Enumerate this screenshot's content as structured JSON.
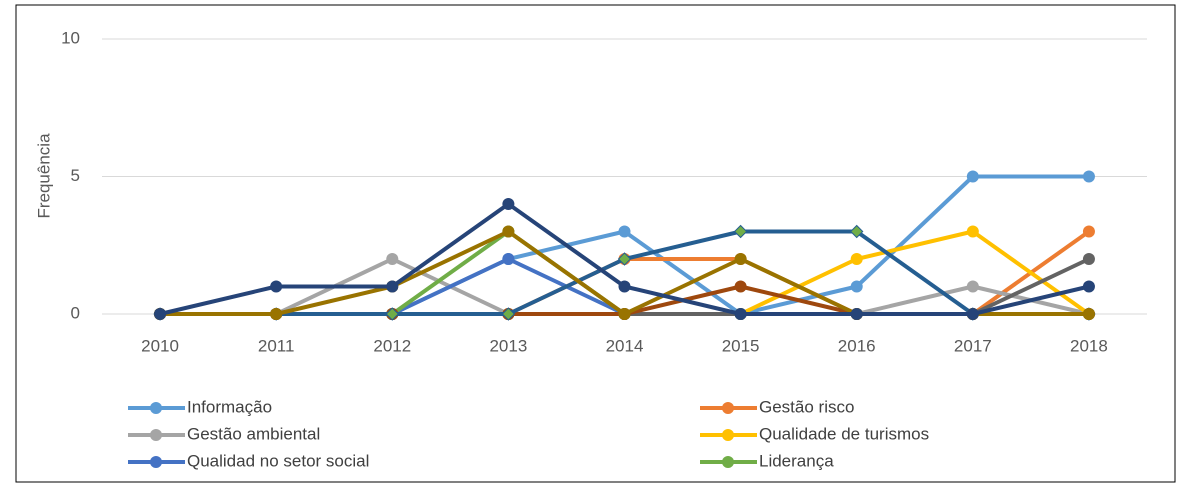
{
  "chart_data": {
    "type": "line",
    "y_label": "Frequência",
    "categories": [
      "2010",
      "2011",
      "2012",
      "2013",
      "2014",
      "2015",
      "2016",
      "2017",
      "2018"
    ],
    "ylim": [
      0,
      10
    ],
    "yticks": [
      0,
      5,
      10
    ],
    "grid": true,
    "legend": "bottom",
    "series": [
      {
        "name": "Informação",
        "color": "#5b9bd5",
        "values": [
          0,
          0,
          0,
          2,
          3,
          0,
          1,
          5,
          5
        ]
      },
      {
        "name": "Gestão risco",
        "color": "#ed7d31",
        "values": [
          0,
          0,
          0,
          0,
          2,
          2,
          0,
          0,
          3
        ]
      },
      {
        "name": "Gestão ambiental",
        "color": "#a5a5a5",
        "values": [
          0,
          0,
          2,
          0,
          0,
          0,
          0,
          1,
          0
        ]
      },
      {
        "name": "Qualidade de turismos",
        "color": "#ffc000",
        "values": [
          0,
          0,
          0,
          0,
          0,
          0,
          2,
          3,
          0
        ]
      },
      {
        "name": "Qualidad no setor social",
        "color": "#4472c4",
        "values": [
          0,
          0,
          0,
          2,
          0,
          0,
          0,
          0,
          0
        ]
      },
      {
        "name": "Liderança",
        "color": "#70ad47",
        "values": [
          0,
          0,
          0,
          3,
          0,
          0,
          0,
          0,
          0
        ]
      },
      {
        "color": "#636363",
        "values": [
          0,
          0,
          0,
          0,
          0,
          0,
          0,
          0,
          2
        ]
      },
      {
        "color": "#9e480e",
        "values": [
          0,
          0,
          0,
          0,
          0,
          1,
          0,
          0,
          0
        ]
      },
      {
        "color": "#255e91",
        "marker": "diamond",
        "marker_color": "#70ad47",
        "values": [
          0,
          0,
          0,
          0,
          2,
          3,
          3,
          0,
          0
        ]
      },
      {
        "color": "#997300",
        "values": [
          0,
          0,
          1,
          3,
          0,
          2,
          0,
          0,
          0
        ]
      },
      {
        "color": "#264478",
        "values": [
          0,
          1,
          1,
          4,
          1,
          0,
          0,
          0,
          1
        ]
      }
    ]
  }
}
